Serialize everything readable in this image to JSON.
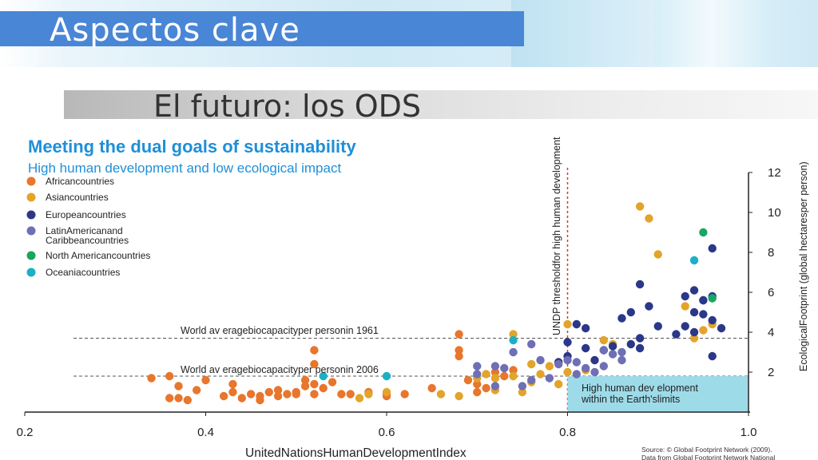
{
  "slide": {
    "title": "Aspectos clave",
    "subtitle": "El futuro: los ODS"
  },
  "chart_data": {
    "type": "scatter",
    "title": "Meeting the dual goals of sustainability",
    "subtitle": "High human development and low ecological impact",
    "xlabel": "UnitedNationsHumanDevelopmentIndex",
    "ylabel": "EcologicalFootprint (global hectaresper person)",
    "xlim": [
      0.2,
      1.0
    ],
    "ylim": [
      0,
      12
    ],
    "x_ticks": [
      "0.2",
      "0.4",
      "0.6",
      "0.8",
      "1.0"
    ],
    "y_ticks": [
      "2",
      "4",
      "6",
      "8",
      "10",
      "12"
    ],
    "colors": {
      "african": "#e8762c",
      "asian": "#e2a42a",
      "european": "#2b3788",
      "latin": "#6e6fb5",
      "north_american": "#19a660",
      "oceania": "#1ab0c6",
      "title": "#1f8fd8",
      "box": "#9edbe9",
      "threshold": "#d23a3a"
    },
    "series": [
      {
        "name": "Africancountries",
        "color": "#e8762c",
        "points": [
          [
            0.34,
            1.7
          ],
          [
            0.36,
            0.7
          ],
          [
            0.37,
            1.3
          ],
          [
            0.37,
            0.7
          ],
          [
            0.39,
            1.1
          ],
          [
            0.43,
            1.4
          ],
          [
            0.43,
            1.0
          ],
          [
            0.45,
            0.9
          ],
          [
            0.46,
            0.8
          ],
          [
            0.47,
            1.0
          ],
          [
            0.48,
            0.8
          ],
          [
            0.49,
            0.9
          ],
          [
            0.5,
            0.9
          ],
          [
            0.51,
            1.3
          ],
          [
            0.51,
            1.6
          ],
          [
            0.52,
            1.4
          ],
          [
            0.52,
            0.9
          ],
          [
            0.53,
            1.2
          ],
          [
            0.54,
            1.5
          ],
          [
            0.55,
            0.9
          ],
          [
            0.56,
            0.9
          ],
          [
            0.58,
            1.0
          ],
          [
            0.6,
            0.9
          ],
          [
            0.62,
            0.9
          ],
          [
            0.65,
            1.2
          ],
          [
            0.68,
            3.1
          ],
          [
            0.68,
            2.8
          ],
          [
            0.68,
            3.9
          ],
          [
            0.69,
            1.6
          ],
          [
            0.7,
            1.0
          ],
          [
            0.72,
            2.0
          ],
          [
            0.73,
            1.8
          ],
          [
            0.52,
            3.1
          ],
          [
            0.52,
            2.4
          ],
          [
            0.36,
            1.8
          ],
          [
            0.4,
            1.6
          ],
          [
            0.46,
            0.6
          ],
          [
            0.44,
            0.7
          ],
          [
            0.42,
            0.8
          ],
          [
            0.38,
            0.6
          ],
          [
            0.6,
            0.8
          ],
          [
            0.48,
            1.1
          ],
          [
            0.5,
            1.0
          ],
          [
            0.7,
            1.4
          ],
          [
            0.71,
            1.2
          ],
          [
            0.74,
            2.1
          ]
        ]
      },
      {
        "name": "Asiancountries",
        "color": "#e2a42a",
        "points": [
          [
            0.88,
            10.3
          ],
          [
            0.89,
            9.7
          ],
          [
            0.9,
            7.9
          ],
          [
            0.93,
            5.3
          ],
          [
            0.94,
            3.7
          ],
          [
            0.95,
            4.1
          ],
          [
            0.96,
            4.4
          ],
          [
            0.85,
            3.4
          ],
          [
            0.84,
            3.6
          ],
          [
            0.8,
            4.4
          ],
          [
            0.79,
            2.5
          ],
          [
            0.78,
            2.3
          ],
          [
            0.77,
            1.9
          ],
          [
            0.76,
            2.4
          ],
          [
            0.76,
            1.5
          ],
          [
            0.74,
            1.8
          ],
          [
            0.72,
            1.7
          ],
          [
            0.72,
            1.1
          ],
          [
            0.7,
            1.7
          ],
          [
            0.68,
            0.8
          ],
          [
            0.66,
            0.9
          ],
          [
            0.75,
            1.0
          ],
          [
            0.8,
            2.0
          ],
          [
            0.79,
            1.4
          ],
          [
            0.82,
            2.1
          ],
          [
            0.58,
            0.9
          ],
          [
            0.57,
            0.7
          ],
          [
            0.6,
            1.0
          ],
          [
            0.71,
            1.9
          ],
          [
            0.74,
            3.9
          ]
        ]
      },
      {
        "name": "Europeancountries",
        "color": "#2b3788",
        "points": [
          [
            0.96,
            8.2
          ],
          [
            0.95,
            5.6
          ],
          [
            0.96,
            5.8
          ],
          [
            0.94,
            5.0
          ],
          [
            0.95,
            4.9
          ],
          [
            0.96,
            4.6
          ],
          [
            0.97,
            4.2
          ],
          [
            0.94,
            4.0
          ],
          [
            0.93,
            4.3
          ],
          [
            0.92,
            3.9
          ],
          [
            0.9,
            4.3
          ],
          [
            0.89,
            5.3
          ],
          [
            0.88,
            6.4
          ],
          [
            0.87,
            5.0
          ],
          [
            0.86,
            4.7
          ],
          [
            0.85,
            3.3
          ],
          [
            0.84,
            3.1
          ],
          [
            0.83,
            2.6
          ],
          [
            0.82,
            3.2
          ],
          [
            0.81,
            4.4
          ],
          [
            0.8,
            3.5
          ],
          [
            0.8,
            2.8
          ],
          [
            0.79,
            2.5
          ],
          [
            0.82,
            4.2
          ],
          [
            0.88,
            3.7
          ],
          [
            0.88,
            3.2
          ],
          [
            0.87,
            3.4
          ],
          [
            0.95,
            5.6
          ],
          [
            0.96,
            2.8
          ],
          [
            0.94,
            6.1
          ],
          [
            0.93,
            5.8
          ]
        ]
      },
      {
        "name": "LatinAmericanand Caribbeancountries",
        "color": "#6e6fb5",
        "points": [
          [
            0.7,
            2.3
          ],
          [
            0.72,
            2.3
          ],
          [
            0.73,
            2.2
          ],
          [
            0.74,
            3.0
          ],
          [
            0.76,
            3.4
          ],
          [
            0.77,
            2.6
          ],
          [
            0.79,
            2.4
          ],
          [
            0.8,
            2.6
          ],
          [
            0.81,
            2.5
          ],
          [
            0.82,
            2.2
          ],
          [
            0.83,
            2.0
          ],
          [
            0.84,
            3.1
          ],
          [
            0.85,
            2.9
          ],
          [
            0.86,
            2.6
          ],
          [
            0.84,
            2.3
          ],
          [
            0.81,
            1.9
          ],
          [
            0.78,
            1.7
          ],
          [
            0.75,
            1.3
          ],
          [
            0.72,
            1.3
          ],
          [
            0.7,
            1.9
          ],
          [
            0.86,
            3.0
          ],
          [
            0.76,
            1.6
          ]
        ]
      },
      {
        "name": "North Americancountries",
        "color": "#19a660",
        "points": [
          [
            0.95,
            9.0
          ],
          [
            0.96,
            5.7
          ]
        ]
      },
      {
        "name": "Oceaniacountries",
        "color": "#1ab0c6",
        "points": [
          [
            0.94,
            7.6
          ],
          [
            0.53,
            1.8
          ],
          [
            0.6,
            1.8
          ],
          [
            0.74,
            3.6
          ]
        ]
      }
    ],
    "reference_lines": [
      {
        "label": "World average biocapacity per person in 1961",
        "display": "World av eragebiocapacityper personin 1961",
        "y": 3.7
      },
      {
        "label": "World average biocapacity per person in 2006",
        "display": "World av eragebiocapacityper personin 2006",
        "y": 1.8
      }
    ],
    "threshold": {
      "x": 0.8,
      "label": "UNDP thresholdfor high human development"
    },
    "annotation_box": {
      "text_line1": "High human dev elopment",
      "text_line2": "within the Earth'slimits",
      "x_range": [
        0.8,
        1.0
      ],
      "y_range": [
        0,
        1.8
      ]
    },
    "legend": {
      "placement": "top-left",
      "labels_display": [
        "Africancountries",
        "Asiancountries",
        "Europeancountries",
        "LatinAmericanand",
        "Caribbeancountries",
        "North Americancountries",
        "Oceaniacountries"
      ]
    },
    "source_line1": "Source: © Global Footprint Network (2009).",
    "source_line2": "Data from Global Footprint Network National"
  }
}
